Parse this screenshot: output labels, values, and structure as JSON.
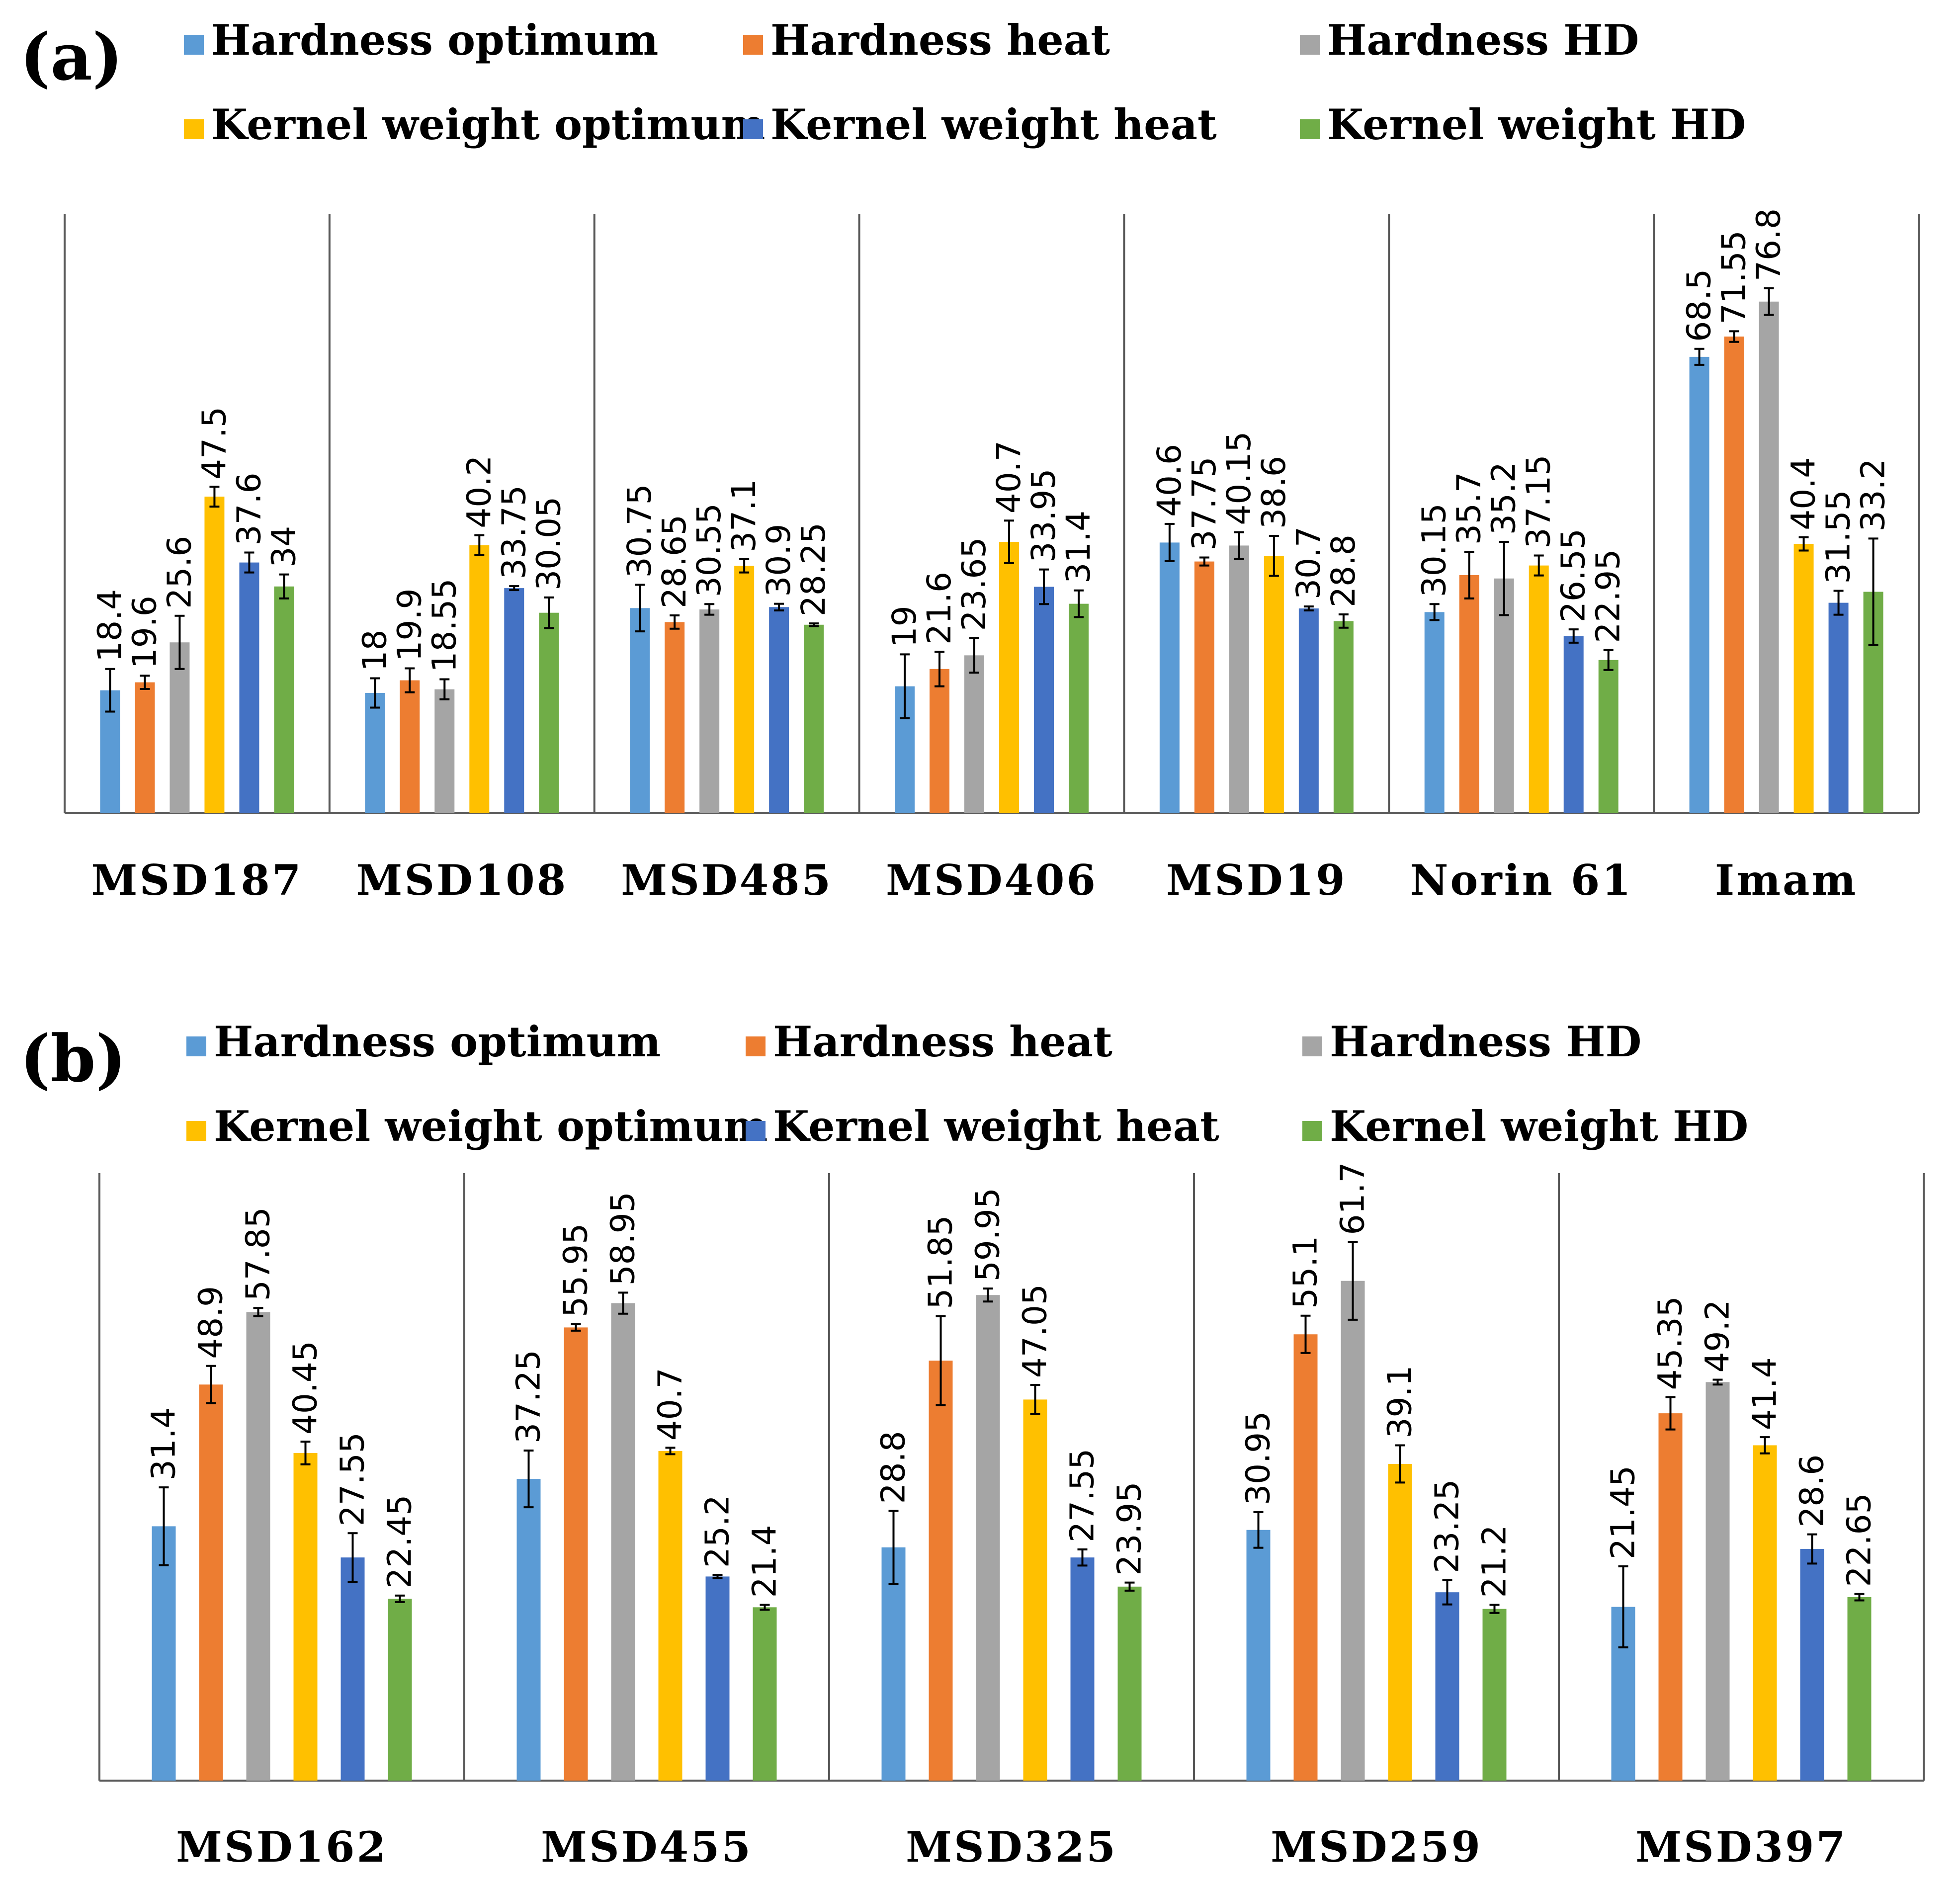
{
  "colors": {
    "Hardness optimum": "#5B9BD5",
    "Hardness heat": "#ED7D31",
    "Hardness HD": "#A5A5A5",
    "Kernel weight optimum": "#FFC000",
    "Kernel weight heat": "#4472C4",
    "Kernel weight HD": "#70AD47"
  },
  "chart_data": [
    {
      "type": "bar",
      "panel_label": "(a)",
      "legend": [
        "Hardness optimum",
        "Hardness heat",
        "Hardness HD",
        "Kernel weight optimum",
        "Kernel weight heat",
        "Kernel weight HD"
      ],
      "categories": [
        "MSD187",
        "MSD108",
        "MSD485",
        "MSD406",
        "MSD19",
        "Norin 61",
        "Imam"
      ],
      "ylim": [
        0,
        90
      ],
      "series": [
        {
          "name": "Hardness optimum",
          "values": [
            18.4,
            18,
            30.75,
            19,
            40.6,
            30.15,
            68.5
          ],
          "errors": [
            3.2,
            2.2,
            3.5,
            4.8,
            2.8,
            1.2,
            1.2
          ]
        },
        {
          "name": "Hardness heat",
          "values": [
            19.6,
            19.9,
            28.65,
            21.6,
            37.75,
            35.7,
            71.55
          ],
          "errors": [
            1.0,
            1.8,
            1.0,
            2.6,
            0.6,
            3.5,
            0.8
          ]
        },
        {
          "name": "Hardness HD",
          "values": [
            25.6,
            18.55,
            30.55,
            23.65,
            40.15,
            35.2,
            76.8
          ],
          "errors": [
            4.0,
            1.5,
            0.8,
            2.6,
            2.0,
            5.5,
            2.0
          ]
        },
        {
          "name": "Kernel weight optimum",
          "values": [
            47.5,
            40.2,
            37.1,
            40.7,
            38.6,
            37.15,
            40.4
          ],
          "errors": [
            1.5,
            1.5,
            1.0,
            3.2,
            3.0,
            1.5,
            1.0
          ]
        },
        {
          "name": "Kernel weight heat",
          "values": [
            37.6,
            33.75,
            30.9,
            33.95,
            30.7,
            26.55,
            31.55
          ],
          "errors": [
            1.5,
            0.3,
            0.5,
            2.6,
            0.3,
            1.0,
            1.8
          ]
        },
        {
          "name": "Kernel weight HD",
          "values": [
            34,
            30.05,
            28.25,
            31.4,
            28.8,
            22.95,
            33.2
          ],
          "errors": [
            1.8,
            2.3,
            0.2,
            2.0,
            1.0,
            1.5,
            8.0
          ]
        }
      ]
    },
    {
      "type": "bar",
      "panel_label": "(b)",
      "legend": [
        "Hardness optimum",
        "Hardness heat",
        "Hardness HD",
        "Kernel weight optimum",
        "Kernel weight heat",
        "Kernel weight HD"
      ],
      "categories": [
        "MSD162",
        "MSD455",
        "MSD325",
        "MSD259",
        "MSD397"
      ],
      "ylim": [
        0,
        75
      ],
      "series": [
        {
          "name": "Hardness optimum",
          "values": [
            31.4,
            37.25,
            28.8,
            30.95,
            21.45
          ],
          "errors": [
            4.8,
            3.5,
            4.5,
            2.2,
            5.0
          ]
        },
        {
          "name": "Hardness heat",
          "values": [
            48.9,
            55.95,
            51.85,
            55.1,
            45.35
          ],
          "errors": [
            2.3,
            0.4,
            5.5,
            2.3,
            2.0
          ]
        },
        {
          "name": "Hardness HD",
          "values": [
            57.85,
            58.95,
            59.95,
            61.7,
            49.2
          ],
          "errors": [
            0.5,
            1.3,
            0.8,
            4.8,
            0.3
          ]
        },
        {
          "name": "Kernel weight optimum",
          "values": [
            40.45,
            40.7,
            47.05,
            39.1,
            41.4
          ],
          "errors": [
            1.4,
            0.4,
            1.8,
            2.3,
            1.0
          ]
        },
        {
          "name": "Kernel weight heat",
          "values": [
            27.55,
            25.2,
            27.55,
            23.25,
            28.6
          ],
          "errors": [
            3.0,
            0.2,
            1.0,
            1.5,
            1.8
          ]
        },
        {
          "name": "Kernel weight HD",
          "values": [
            22.45,
            21.4,
            23.95,
            21.2,
            22.65
          ],
          "errors": [
            0.4,
            0.3,
            0.5,
            0.5,
            0.4
          ]
        }
      ]
    }
  ]
}
